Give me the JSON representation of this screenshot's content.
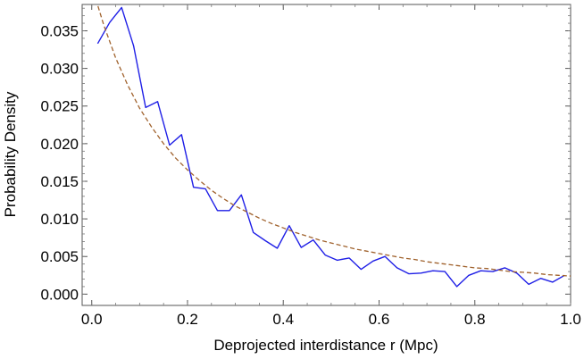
{
  "chart_data": {
    "type": "line",
    "title": "",
    "xlabel": "Deprojected interdistance r  (Mpc)",
    "ylabel": "Probability Density",
    "xlim": [
      -0.02,
      1.0
    ],
    "ylim": [
      -0.0015,
      0.0385
    ],
    "xticks": [
      0.0,
      0.2,
      0.4,
      0.6,
      0.8,
      1.0
    ],
    "xtick_labels": [
      "0.0",
      "0.2",
      "0.4",
      "0.6",
      "0.8",
      "1.0"
    ],
    "yticks": [
      0.0,
      0.005,
      0.01,
      0.015,
      0.02,
      0.025,
      0.03,
      0.035
    ],
    "ytick_labels": [
      "0.000",
      "0.005",
      "0.010",
      "0.015",
      "0.020",
      "0.025",
      "0.030",
      "0.035"
    ],
    "grid": false,
    "legend": "none",
    "series": [
      {
        "color": "#1f1fe6",
        "style": "solid",
        "x": [
          0.0125,
          0.0375,
          0.0625,
          0.0875,
          0.1125,
          0.1375,
          0.1625,
          0.1875,
          0.2125,
          0.2375,
          0.2625,
          0.2875,
          0.3125,
          0.3375,
          0.3625,
          0.3875,
          0.4125,
          0.4375,
          0.4625,
          0.4875,
          0.5125,
          0.5375,
          0.5625,
          0.5875,
          0.6125,
          0.6375,
          0.6625,
          0.6875,
          0.7125,
          0.7375,
          0.7625,
          0.7875,
          0.8125,
          0.8375,
          0.8625,
          0.8875,
          0.9125,
          0.9375,
          0.9625,
          0.9875
        ],
        "y": [
          0.0333,
          0.0361,
          0.0381,
          0.033,
          0.0248,
          0.0256,
          0.0198,
          0.0212,
          0.0142,
          0.014,
          0.0111,
          0.0111,
          0.0132,
          0.0082,
          0.0071,
          0.0061,
          0.0091,
          0.0062,
          0.0072,
          0.0052,
          0.0045,
          0.0048,
          0.0033,
          0.0044,
          0.005,
          0.0035,
          0.0027,
          0.0028,
          0.0031,
          0.003,
          0.001,
          0.0025,
          0.0031,
          0.003,
          0.0035,
          0.0028,
          0.0013,
          0.0021,
          0.0016,
          0.0025
        ]
      },
      {
        "color": "#a0622d",
        "style": "dashed",
        "x": [
          0.0,
          0.025,
          0.05,
          0.075,
          0.1,
          0.125,
          0.15,
          0.175,
          0.2,
          0.225,
          0.25,
          0.275,
          0.3,
          0.325,
          0.35,
          0.375,
          0.4,
          0.425,
          0.45,
          0.475,
          0.5,
          0.525,
          0.55,
          0.575,
          0.6,
          0.625,
          0.65,
          0.675,
          0.7,
          0.725,
          0.75,
          0.775,
          0.8,
          0.825,
          0.85,
          0.875,
          0.9,
          0.925,
          0.95,
          0.975,
          1.0
        ],
        "y": [
          0.041,
          0.0358,
          0.0314,
          0.0278,
          0.0247,
          0.0222,
          0.02,
          0.0181,
          0.0165,
          0.0151,
          0.0138,
          0.0127,
          0.0117,
          0.0109,
          0.0101,
          0.0094,
          0.0088,
          0.0082,
          0.0077,
          0.0072,
          0.0068,
          0.0064,
          0.006,
          0.0057,
          0.0054,
          0.0051,
          0.0048,
          0.0046,
          0.0043,
          0.0041,
          0.0039,
          0.0037,
          0.0035,
          0.0034,
          0.0032,
          0.003,
          0.0029,
          0.0028,
          0.0026,
          0.0025,
          0.0024
        ]
      }
    ]
  }
}
